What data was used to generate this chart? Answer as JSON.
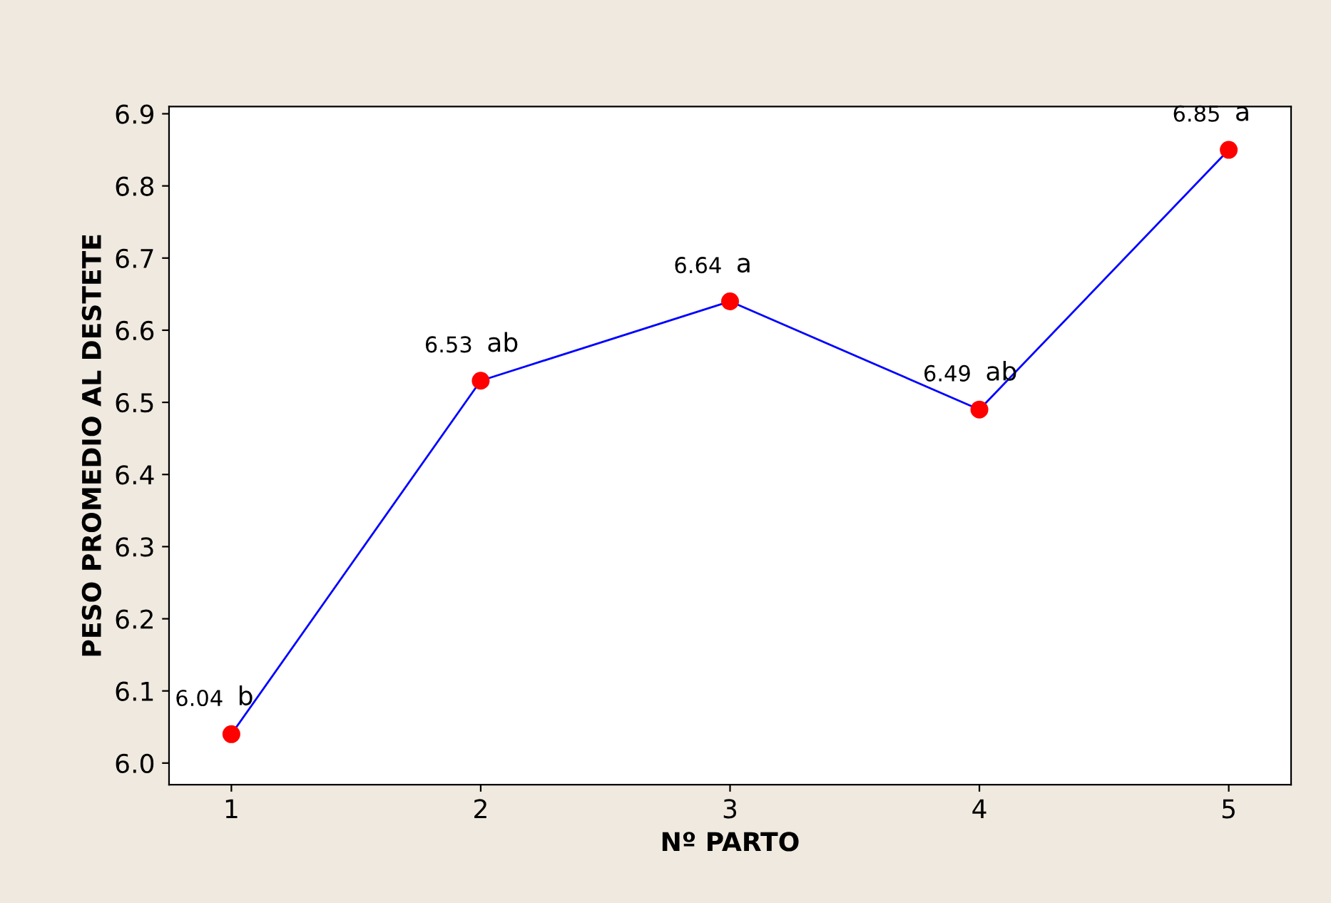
{
  "chart_data": {
    "type": "line",
    "xlabel": "Nº PARTO",
    "ylabel": "PESO PROMEDIO AL DESTETE",
    "x": [
      1,
      2,
      3,
      4,
      5
    ],
    "series": [
      {
        "color": "#0000ff",
        "values": [
          6.04,
          6.53,
          6.64,
          6.49,
          6.85
        ]
      }
    ],
    "colors": [
      "#ff0000",
      "#ff0000",
      "#ff0000",
      "#ff0000",
      "#ff0000"
    ],
    "marker": "circle",
    "line_style": "solid",
    "data_labels": true,
    "annotations": [
      {
        "text": "b",
        "x": 1,
        "y": 6.04
      },
      {
        "text": "ab",
        "x": 2,
        "y": 6.53
      },
      {
        "text": "a",
        "x": 3,
        "y": 6.64
      },
      {
        "text": "ab",
        "x": 4,
        "y": 6.49
      },
      {
        "text": "a",
        "x": 5,
        "y": 6.85
      }
    ],
    "xlim": [
      0.75,
      5.25
    ],
    "xticks": [
      1,
      2,
      3,
      4,
      5
    ],
    "ylim": [
      5.97,
      6.91
    ],
    "yticks": [
      {
        "value": 6,
        "label": "6.0"
      },
      6.1,
      6.2,
      6.3,
      6.4,
      6.5,
      6.6,
      6.7,
      6.8,
      6.9
    ],
    "grid": false
  }
}
